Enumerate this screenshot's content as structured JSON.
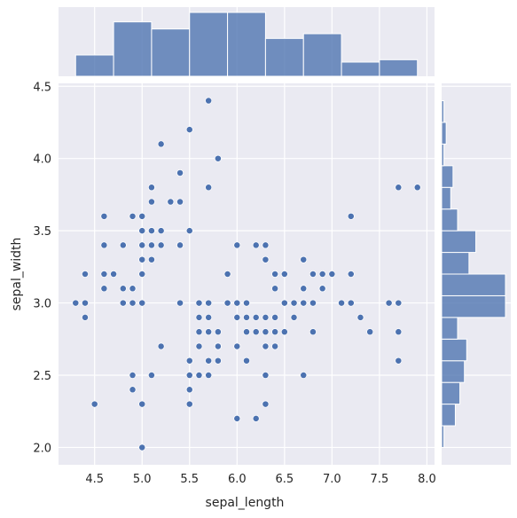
{
  "chart_data": {
    "type": "scatter",
    "title": "",
    "xlabel": "sepal_length",
    "ylabel": "sepal_width",
    "xlim": [
      4.12,
      8.08
    ],
    "ylim": [
      1.88,
      4.52
    ],
    "xticks": [
      "4.5",
      "5.0",
      "5.5",
      "6.0",
      "6.5",
      "7.0",
      "7.5",
      "8.0"
    ],
    "yticks": [
      "2.0",
      "2.5",
      "3.0",
      "3.5",
      "4.0",
      "4.5"
    ],
    "grid": true,
    "color": "#4c72b0",
    "points": [
      [
        5.1,
        3.5
      ],
      [
        4.9,
        3.0
      ],
      [
        4.7,
        3.2
      ],
      [
        4.6,
        3.1
      ],
      [
        5.0,
        3.6
      ],
      [
        5.4,
        3.9
      ],
      [
        4.6,
        3.4
      ],
      [
        5.0,
        3.4
      ],
      [
        4.4,
        2.9
      ],
      [
        4.9,
        3.1
      ],
      [
        5.4,
        3.7
      ],
      [
        4.8,
        3.4
      ],
      [
        4.8,
        3.0
      ],
      [
        4.3,
        3.0
      ],
      [
        5.8,
        4.0
      ],
      [
        5.7,
        4.4
      ],
      [
        5.4,
        3.9
      ],
      [
        5.1,
        3.5
      ],
      [
        5.7,
        3.8
      ],
      [
        5.1,
        3.8
      ],
      [
        5.4,
        3.4
      ],
      [
        5.1,
        3.7
      ],
      [
        4.6,
        3.6
      ],
      [
        5.1,
        3.3
      ],
      [
        4.8,
        3.4
      ],
      [
        5.0,
        3.0
      ],
      [
        5.0,
        3.4
      ],
      [
        5.2,
        3.5
      ],
      [
        5.2,
        3.4
      ],
      [
        4.7,
        3.2
      ],
      [
        4.8,
        3.1
      ],
      [
        5.4,
        3.4
      ],
      [
        5.2,
        4.1
      ],
      [
        5.5,
        4.2
      ],
      [
        4.9,
        3.1
      ],
      [
        5.0,
        3.2
      ],
      [
        5.5,
        3.5
      ],
      [
        4.9,
        3.6
      ],
      [
        4.4,
        3.0
      ],
      [
        5.1,
        3.4
      ],
      [
        5.0,
        3.5
      ],
      [
        4.5,
        2.3
      ],
      [
        4.4,
        3.2
      ],
      [
        5.0,
        3.5
      ],
      [
        5.1,
        3.8
      ],
      [
        4.8,
        3.0
      ],
      [
        5.1,
        3.8
      ],
      [
        4.6,
        3.2
      ],
      [
        5.3,
        3.7
      ],
      [
        5.0,
        3.3
      ],
      [
        7.0,
        3.2
      ],
      [
        6.4,
        3.2
      ],
      [
        6.9,
        3.1
      ],
      [
        5.5,
        2.3
      ],
      [
        6.5,
        2.8
      ],
      [
        5.7,
        2.8
      ],
      [
        6.3,
        3.3
      ],
      [
        4.9,
        2.4
      ],
      [
        6.6,
        2.9
      ],
      [
        5.2,
        2.7
      ],
      [
        5.0,
        2.0
      ],
      [
        5.9,
        3.0
      ],
      [
        6.0,
        2.2
      ],
      [
        6.1,
        2.9
      ],
      [
        5.6,
        2.9
      ],
      [
        6.7,
        3.1
      ],
      [
        5.6,
        3.0
      ],
      [
        5.8,
        2.7
      ],
      [
        6.2,
        2.2
      ],
      [
        5.6,
        2.5
      ],
      [
        5.9,
        3.2
      ],
      [
        6.1,
        2.8
      ],
      [
        6.3,
        2.5
      ],
      [
        6.1,
        2.8
      ],
      [
        6.4,
        2.9
      ],
      [
        6.6,
        3.0
      ],
      [
        6.8,
        2.8
      ],
      [
        6.7,
        3.0
      ],
      [
        6.0,
        2.9
      ],
      [
        5.7,
        2.6
      ],
      [
        5.5,
        2.4
      ],
      [
        5.5,
        2.4
      ],
      [
        5.8,
        2.7
      ],
      [
        6.0,
        2.7
      ],
      [
        5.4,
        3.0
      ],
      [
        6.0,
        3.4
      ],
      [
        6.7,
        3.1
      ],
      [
        6.3,
        2.3
      ],
      [
        5.6,
        3.0
      ],
      [
        5.5,
        2.5
      ],
      [
        5.5,
        2.6
      ],
      [
        6.1,
        3.0
      ],
      [
        5.8,
        2.6
      ],
      [
        5.0,
        2.3
      ],
      [
        5.6,
        2.7
      ],
      [
        5.7,
        3.0
      ],
      [
        5.7,
        2.9
      ],
      [
        6.2,
        2.9
      ],
      [
        5.1,
        2.5
      ],
      [
        5.7,
        2.8
      ],
      [
        6.3,
        3.3
      ],
      [
        5.8,
        2.7
      ],
      [
        7.1,
        3.0
      ],
      [
        6.3,
        2.9
      ],
      [
        6.5,
        3.0
      ],
      [
        7.6,
        3.0
      ],
      [
        4.9,
        2.5
      ],
      [
        7.3,
        2.9
      ],
      [
        6.7,
        2.5
      ],
      [
        7.2,
        3.6
      ],
      [
        6.5,
        3.2
      ],
      [
        6.4,
        2.7
      ],
      [
        6.8,
        3.0
      ],
      [
        5.7,
        2.5
      ],
      [
        5.8,
        2.8
      ],
      [
        6.4,
        3.2
      ],
      [
        6.5,
        3.0
      ],
      [
        7.7,
        3.8
      ],
      [
        7.7,
        2.6
      ],
      [
        6.0,
        2.2
      ],
      [
        6.9,
        3.2
      ],
      [
        5.6,
        2.8
      ],
      [
        7.7,
        2.8
      ],
      [
        6.3,
        2.7
      ],
      [
        6.7,
        3.3
      ],
      [
        7.2,
        3.2
      ],
      [
        6.2,
        2.8
      ],
      [
        6.1,
        3.0
      ],
      [
        6.4,
        2.8
      ],
      [
        7.2,
        3.0
      ],
      [
        7.4,
        2.8
      ],
      [
        7.9,
        3.8
      ],
      [
        6.4,
        2.8
      ],
      [
        6.3,
        2.8
      ],
      [
        6.1,
        2.6
      ],
      [
        7.7,
        3.0
      ],
      [
        6.3,
        3.4
      ],
      [
        6.4,
        3.1
      ],
      [
        6.0,
        3.0
      ],
      [
        6.9,
        3.1
      ],
      [
        6.7,
        3.1
      ],
      [
        6.9,
        3.1
      ],
      [
        5.8,
        2.7
      ],
      [
        6.8,
        3.2
      ],
      [
        6.7,
        3.3
      ],
      [
        6.7,
        3.0
      ],
      [
        6.3,
        2.5
      ],
      [
        6.5,
        3.0
      ],
      [
        6.2,
        3.4
      ],
      [
        5.9,
        3.0
      ]
    ],
    "marginal_x": {
      "type": "histogram",
      "bin_edges": [
        4.3,
        4.7,
        5.1,
        5.5,
        5.9,
        6.3,
        6.7,
        7.1,
        7.5,
        7.9
      ],
      "counts": [
        9,
        23,
        20,
        27,
        27,
        16,
        18,
        6,
        7
      ]
    },
    "marginal_y": {
      "type": "histogram",
      "bin_edges": [
        2.0,
        2.15,
        2.3,
        2.45,
        2.6,
        2.75,
        2.9,
        3.05,
        3.2,
        3.35,
        3.5,
        3.65,
        3.8,
        3.95,
        4.1,
        4.25,
        4.4
      ],
      "counts": [
        1,
        6,
        8,
        10,
        11,
        7,
        28,
        28,
        12,
        15,
        7,
        4,
        5,
        1,
        2,
        1
      ]
    }
  }
}
